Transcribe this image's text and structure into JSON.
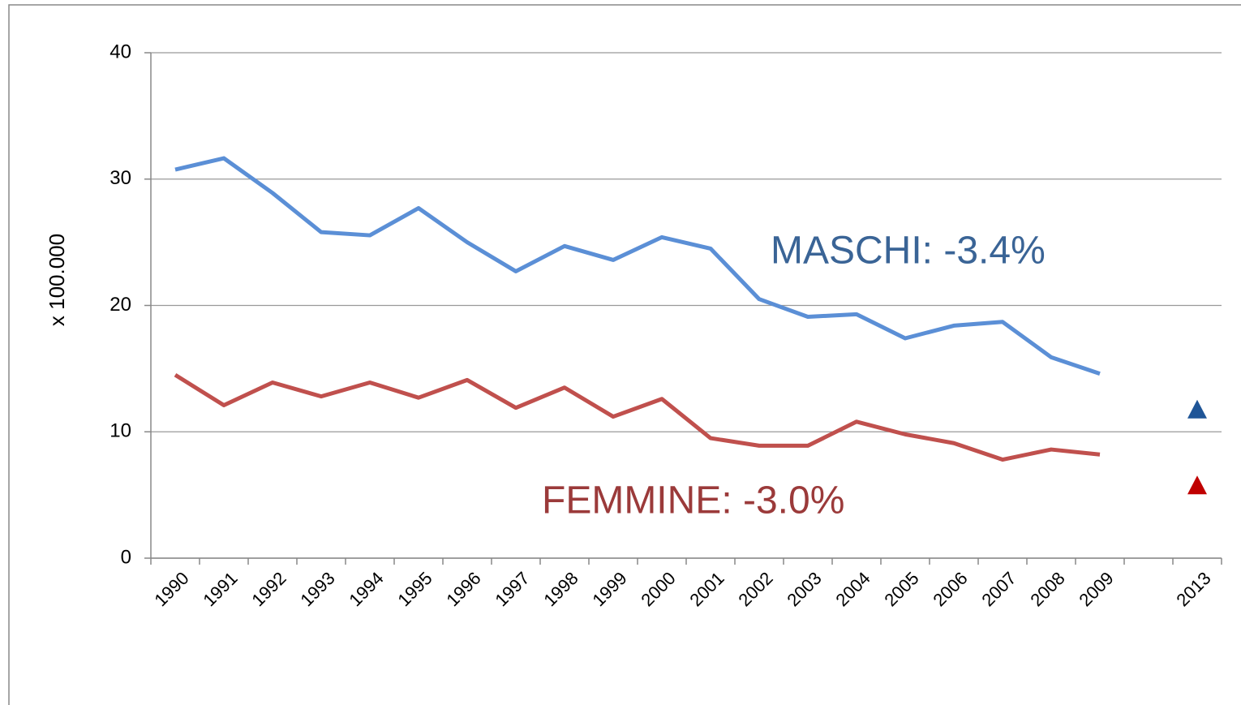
{
  "chart_data": {
    "type": "line",
    "categories": [
      "1990",
      "1991",
      "1992",
      "1993",
      "1994",
      "1995",
      "1996",
      "1997",
      "1998",
      "1999",
      "2000",
      "2001",
      "2002",
      "2003",
      "2004",
      "2005",
      "2006",
      "2007",
      "2008",
      "2009",
      null,
      "2013"
    ],
    "series": [
      {
        "name": "MASCHI: -3.4%",
        "color": "#5b8fd6",
        "marker_color": "#1f5597",
        "label_color": "#3a6496",
        "values": [
          30.75,
          31.65,
          28.9,
          25.8,
          25.55,
          27.7,
          25.0,
          22.7,
          24.7,
          23.6,
          25.4,
          24.5,
          20.5,
          19.1,
          19.3,
          17.4,
          18.4,
          18.7,
          15.9,
          14.6,
          null,
          11.7
        ]
      },
      {
        "name": "FEMMINE: -3.0%",
        "color": "#c0504d",
        "marker_color": "#c00000",
        "label_color": "#9b3a3a",
        "values": [
          14.5,
          12.1,
          13.9,
          12.8,
          13.9,
          12.7,
          14.1,
          11.9,
          13.5,
          11.2,
          12.6,
          9.5,
          8.9,
          8.9,
          10.8,
          9.8,
          9.1,
          7.8,
          8.6,
          8.2,
          null,
          5.7
        ]
      }
    ],
    "y_label": "x 100.000",
    "ylim": [
      0,
      40
    ],
    "yticks": [
      0,
      10,
      20,
      30,
      40
    ],
    "grid": true
  }
}
